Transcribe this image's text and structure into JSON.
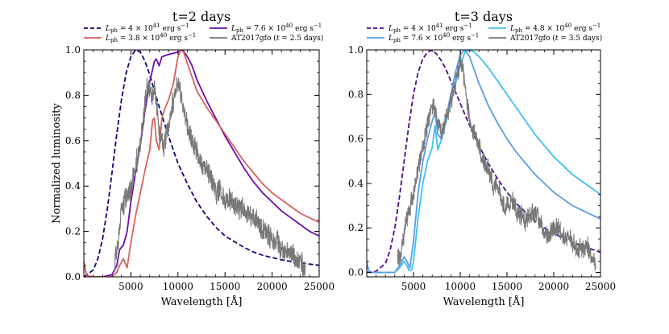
{
  "chart_data": [
    {
      "type": "line",
      "title": "t=2 days",
      "xlabel": "Wavelength [Å]",
      "ylabel": "Normalized luminosity",
      "xlim": [
        0,
        25000
      ],
      "ylim": [
        0,
        1.0
      ],
      "xticks": [
        "5000",
        "10000",
        "15000",
        "20000",
        "25000"
      ],
      "xtick_values": [
        5000,
        10000,
        15000,
        20000,
        25000
      ],
      "yticks": [
        "0.0",
        "0.2",
        "0.4",
        "0.6",
        "0.8",
        "1.0"
      ],
      "ytick_values": [
        0.0,
        0.2,
        0.4,
        0.6,
        0.8,
        1.0
      ],
      "legend_position": "top",
      "series": [
        {
          "name": "L_ph = 4 × 10^41 erg s^-1",
          "legend": {
            "base": "L",
            "sub": "ph",
            "mid": " = 4 × 10",
            "sup": "41",
            "tail": " erg s",
            "sup2": "−1"
          },
          "color": "#0b0b7a",
          "dash": true,
          "x": [
            0,
            1000,
            1500,
            2000,
            2500,
            3000,
            3500,
            4000,
            4500,
            5000,
            5500,
            6000,
            6500,
            7000,
            7500,
            8000,
            9000,
            10000,
            11000,
            12000,
            13000,
            14000,
            15000,
            16000,
            17000,
            18000,
            19000,
            20000,
            21000,
            22000,
            23000,
            24000,
            25000
          ],
          "y": [
            0,
            0.03,
            0.08,
            0.17,
            0.3,
            0.46,
            0.63,
            0.78,
            0.9,
            0.97,
            1.0,
            0.99,
            0.95,
            0.89,
            0.82,
            0.75,
            0.62,
            0.5,
            0.41,
            0.33,
            0.27,
            0.22,
            0.18,
            0.155,
            0.13,
            0.11,
            0.095,
            0.085,
            0.075,
            0.068,
            0.062,
            0.056,
            0.051
          ]
        },
        {
          "name": "L_ph = 7.6 × 10^40 erg s^-1",
          "legend": {
            "base": "L",
            "sub": "ph",
            "mid": " = 7.6 × 10",
            "sup": "40",
            "tail": " erg s",
            "sup2": "−1"
          },
          "color": "#6a0dad",
          "dash": false,
          "x": [
            0,
            150,
            300,
            1000,
            2000,
            2500,
            3000,
            3500,
            3800,
            4200,
            4600,
            5000,
            5500,
            6000,
            6500,
            7000,
            7500,
            7700,
            8000,
            8300,
            9000,
            9500,
            10000,
            10500,
            11000,
            11500,
            12000,
            13000,
            14000,
            15000,
            16000,
            17000,
            18000,
            19000,
            20000,
            21000,
            22000,
            23000,
            24000,
            25000
          ],
          "y": [
            0.06,
            0.03,
            0.005,
            0.0,
            0.0,
            0.005,
            0.01,
            0.05,
            0.12,
            0.14,
            0.2,
            0.33,
            0.46,
            0.58,
            0.73,
            0.86,
            0.95,
            0.96,
            0.93,
            0.97,
            0.98,
            0.985,
            0.99,
            1.0,
            0.97,
            0.93,
            0.87,
            0.78,
            0.7,
            0.62,
            0.55,
            0.48,
            0.42,
            0.37,
            0.33,
            0.29,
            0.26,
            0.23,
            0.2,
            0.18
          ]
        },
        {
          "name": "L_ph = 3.8 × 10^40 erg s^-1",
          "legend": {
            "base": "L",
            "sub": "ph",
            "mid": " = 3.8 × 10",
            "sup": "40",
            "tail": " erg s",
            "sup2": "−1"
          },
          "color": "#d9605f",
          "dash": false,
          "x": [
            0,
            150,
            300,
            1000,
            2000,
            3000,
            3500,
            3800,
            4200,
            4600,
            5000,
            5500,
            6000,
            6500,
            7000,
            7300,
            7500,
            7700,
            8000,
            8300,
            8600,
            9000,
            9500,
            10000,
            10300,
            10600,
            11000,
            11500,
            12000,
            13000,
            14000,
            15000,
            16000,
            17000,
            18000,
            19000,
            20000,
            21000,
            22000,
            23000,
            24000,
            25000
          ],
          "y": [
            0.07,
            0.03,
            0.005,
            0.0,
            0.0,
            0.0,
            0.02,
            0.05,
            0.08,
            0.04,
            0.15,
            0.27,
            0.37,
            0.47,
            0.56,
            0.69,
            0.7,
            0.6,
            0.56,
            0.7,
            0.74,
            0.78,
            0.85,
            0.97,
            1.0,
            0.99,
            0.94,
            0.88,
            0.82,
            0.75,
            0.69,
            0.63,
            0.57,
            0.51,
            0.46,
            0.41,
            0.37,
            0.34,
            0.31,
            0.28,
            0.26,
            0.24
          ]
        },
        {
          "name": "AT2017gfo (t = 2.5 days)",
          "legend": {
            "text": "AT2017gfo (",
            "italic": "t",
            "tail": " = 2.5 days)"
          },
          "color": "#787878",
          "dash": false,
          "noisy": true,
          "noise_amp": 0.04,
          "x": [
            3300,
            3600,
            3900,
            4200,
            4600,
            5000,
            5500,
            6000,
            6500,
            6800,
            7200,
            7600,
            8000,
            8400,
            8800,
            9200,
            9600,
            10000,
            10400,
            10800,
            11200,
            11600,
            12000,
            12400,
            13000,
            13200,
            13500,
            14000,
            14500,
            15000,
            15500,
            16000,
            16500,
            17000,
            17500,
            18000,
            19000,
            20000,
            20500,
            21000,
            21500,
            22000,
            22500,
            23000,
            23500
          ],
          "y": [
            0.08,
            0.14,
            0.27,
            0.32,
            0.36,
            0.38,
            0.49,
            0.58,
            0.76,
            0.85,
            0.78,
            0.83,
            0.64,
            0.57,
            0.63,
            0.7,
            0.8,
            0.86,
            0.79,
            0.7,
            0.64,
            0.59,
            0.56,
            0.51,
            0.47,
            0.48,
            0.42,
            0.38,
            0.37,
            0.34,
            0.34,
            0.32,
            0.31,
            0.29,
            0.27,
            0.27,
            0.2,
            0.16,
            0.16,
            0.12,
            0.12,
            0.11,
            0.08,
            0.06,
            0.03
          ]
        }
      ]
    },
    {
      "type": "line",
      "title": "t=3 days",
      "xlabel": "Wavelength [Å]",
      "ylabel": "",
      "xlim": [
        0,
        25000
      ],
      "ylim": [
        -0.02,
        1.0
      ],
      "xticks": [
        "5000",
        "10000",
        "15000",
        "20000",
        "25000"
      ],
      "xtick_values": [
        5000,
        10000,
        15000,
        20000,
        25000
      ],
      "yticks": [
        "0.0",
        "0.2",
        "0.4",
        "0.6",
        "0.8",
        "1.0"
      ],
      "ytick_values": [
        0.0,
        0.2,
        0.4,
        0.6,
        0.8,
        1.0
      ],
      "legend_position": "top",
      "series": [
        {
          "name": "L_ph = 4 × 10^41 erg s^-1",
          "legend": {
            "base": "L",
            "sub": "ph",
            "mid": " = 4 × 10",
            "sup": "41",
            "tail": " erg s",
            "sup2": "−1"
          },
          "color": "#4b0c8f",
          "dash": true,
          "x": [
            0,
            1000,
            2000,
            2500,
            3000,
            3500,
            4000,
            4500,
            5000,
            5500,
            6000,
            6500,
            7000,
            7500,
            8000,
            8500,
            9000,
            10000,
            11000,
            12000,
            13000,
            14000,
            15000,
            16000,
            17000,
            18000,
            19000,
            20000,
            21000,
            22000,
            23000,
            24000,
            25000
          ],
          "y": [
            0,
            0.005,
            0.04,
            0.1,
            0.2,
            0.34,
            0.5,
            0.66,
            0.8,
            0.9,
            0.96,
            0.99,
            1.0,
            0.98,
            0.95,
            0.91,
            0.86,
            0.76,
            0.66,
            0.57,
            0.49,
            0.42,
            0.36,
            0.31,
            0.27,
            0.23,
            0.2,
            0.175,
            0.155,
            0.135,
            0.12,
            0.105,
            0.09
          ]
        },
        {
          "name": "L_ph = 4.8 × 10^40 erg s^-1",
          "legend": {
            "base": "L",
            "sub": "ph",
            "mid": " = 4.8 × 10",
            "sup": "40",
            "tail": " erg s",
            "sup2": "−1"
          },
          "color": "#3cc2f0",
          "dash": false,
          "x": [
            0,
            150,
            300,
            1000,
            2000,
            3000,
            3500,
            4000,
            4300,
            4500,
            4800,
            5000,
            5500,
            6000,
            6500,
            7000,
            7300,
            7600,
            8000,
            8500,
            9000,
            9500,
            10000,
            10500,
            11000,
            11500,
            12000,
            13000,
            14000,
            15000,
            16000,
            17000,
            18000,
            19000,
            20000,
            21000,
            22000,
            23000,
            24000,
            25000
          ],
          "y": [
            0.04,
            0.015,
            0.0,
            0.0,
            0.0,
            0.0,
            0.02,
            0.05,
            0.03,
            0.01,
            0.01,
            0.05,
            0.25,
            0.4,
            0.5,
            0.56,
            0.66,
            0.55,
            0.6,
            0.68,
            0.77,
            0.85,
            0.93,
            0.99,
            1.0,
            0.99,
            0.97,
            0.92,
            0.86,
            0.8,
            0.74,
            0.68,
            0.62,
            0.57,
            0.52,
            0.48,
            0.44,
            0.41,
            0.38,
            0.35
          ]
        },
        {
          "name": "L_ph = 7.6 × 10^40 erg s^-1",
          "legend": {
            "base": "L",
            "sub": "ph",
            "mid": " = 7.6 × 10",
            "sup": "40",
            "tail": " erg s",
            "sup2": "−1"
          },
          "color": "#5b9be8",
          "dash": false,
          "x": [
            0,
            150,
            300,
            1000,
            2000,
            3000,
            3500,
            4000,
            4300,
            4600,
            5000,
            5500,
            6000,
            6500,
            7000,
            7300,
            7600,
            8000,
            8500,
            9000,
            9500,
            10000,
            10500,
            11000,
            11500,
            12000,
            13000,
            14000,
            15000,
            16000,
            17000,
            18000,
            19000,
            20000,
            21000,
            22000,
            23000,
            24000,
            25000
          ],
          "y": [
            0.05,
            0.02,
            0.0,
            0.0,
            0.0,
            0.0,
            0.03,
            0.07,
            0.05,
            0.02,
            0.14,
            0.36,
            0.5,
            0.6,
            0.68,
            0.72,
            0.62,
            0.6,
            0.7,
            0.8,
            0.9,
            0.98,
            1.0,
            0.97,
            0.91,
            0.85,
            0.75,
            0.67,
            0.6,
            0.54,
            0.49,
            0.44,
            0.4,
            0.36,
            0.33,
            0.3,
            0.28,
            0.26,
            0.24
          ]
        },
        {
          "name": "AT2017gfo (t = 3.5 days)",
          "legend": {
            "text": "AT2017gfo (",
            "italic": "t",
            "tail": " = 3.5 days)"
          },
          "color": "#787878",
          "dash": false,
          "noisy": true,
          "noise_amp": 0.035,
          "x": [
            3300,
            3600,
            3900,
            4200,
            4600,
            5000,
            5500,
            6000,
            6500,
            7000,
            7300,
            7600,
            8000,
            8400,
            8800,
            9200,
            9600,
            10000,
            10400,
            10800,
            11200,
            11600,
            12000,
            12500,
            13000,
            13500,
            14000,
            14500,
            15000,
            15500,
            16000,
            16500,
            17000,
            18000,
            19000,
            19500,
            20000,
            20500,
            21000,
            21500,
            22000,
            22500,
            23000,
            23500,
            24000,
            24500
          ],
          "y": [
            0.08,
            0.06,
            0.15,
            0.23,
            0.29,
            0.34,
            0.48,
            0.56,
            0.67,
            0.75,
            0.73,
            0.68,
            0.62,
            0.68,
            0.74,
            0.8,
            0.88,
            0.96,
            0.88,
            0.75,
            0.64,
            0.61,
            0.57,
            0.5,
            0.47,
            0.39,
            0.41,
            0.3,
            0.3,
            0.33,
            0.28,
            0.26,
            0.23,
            0.27,
            0.18,
            0.16,
            0.2,
            0.19,
            0.17,
            0.16,
            0.14,
            0.1,
            0.11,
            0.12,
            0.08,
            0.03
          ]
        }
      ]
    }
  ]
}
